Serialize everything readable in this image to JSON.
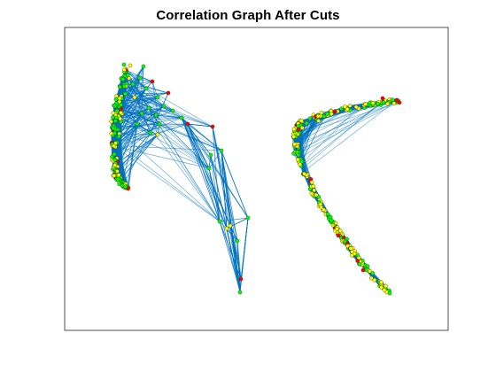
{
  "figure": {
    "title": "Correlation Graph After Cuts"
  },
  "colors": {
    "edge": "#0072BD",
    "axes_box": "#262626",
    "node_green": "#00FF00",
    "node_yellow": "#FFFF00",
    "node_red": "#FF0000",
    "node_outline": "#1a1a1a"
  },
  "graph": {
    "clusters": [
      {
        "name": "left-cluster",
        "shape": "dense band plus sparse right branch",
        "dominant_node_color": "green"
      },
      {
        "name": "right-cluster",
        "shape": "dense arc band",
        "dominant_node_color": "yellow"
      }
    ]
  }
}
